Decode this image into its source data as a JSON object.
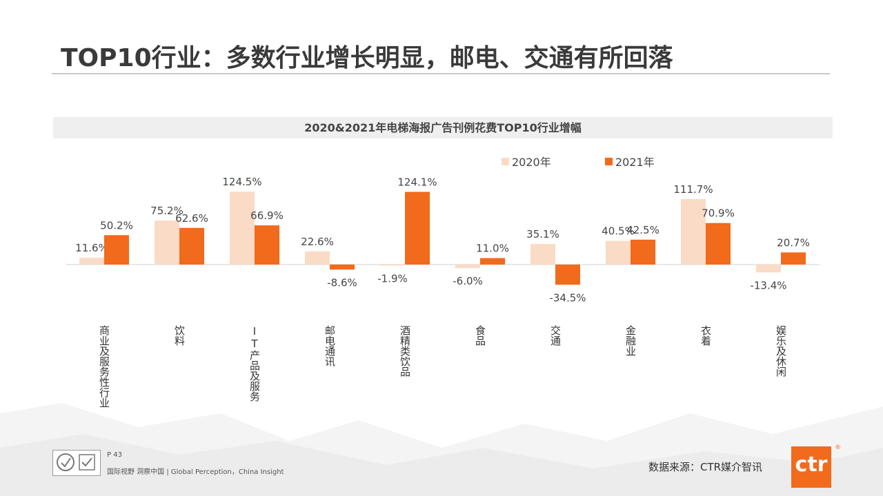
{
  "page": {
    "title": "TOP10行业：多数行业增长明显，邮电、交通有所回落",
    "page_number": "P 43",
    "slogan": "国际视野  洞察中国 | Global Perception，China Insight",
    "source": "数据来源：CTR媒介智讯",
    "logo_text": "ctr",
    "logo_mark": "®"
  },
  "colors": {
    "series_2020": "#fadbc6",
    "series_2021": "#f26a1b"
  },
  "chart_data": {
    "type": "bar",
    "title": "2020&2021年电梯海报广告刊例花费TOP10行业增幅",
    "categories": [
      "商业及服务性行业",
      "饮料",
      "IT产品及服务",
      "邮电通讯",
      "酒精类饮品",
      "食品",
      "交通",
      "金融业",
      "衣着",
      "娱乐及休闲"
    ],
    "series": [
      {
        "name": "2020年",
        "values": [
          11.6,
          75.2,
          124.5,
          22.6,
          -1.9,
          -6.0,
          35.1,
          40.5,
          111.7,
          -13.4
        ],
        "labels": [
          "11.6%",
          "75.2%",
          "124.5%",
          "22.6%",
          "-1.9%",
          "-6.0%",
          "35.1%",
          "40.5%",
          "111.7%",
          "-13.4%"
        ]
      },
      {
        "name": "2021年",
        "values": [
          50.2,
          62.6,
          66.9,
          -8.6,
          124.1,
          11.0,
          -34.5,
          42.5,
          70.9,
          20.7
        ],
        "labels": [
          "50.2%",
          "62.6%",
          "66.9%",
          "-8.6%",
          "124.1%",
          "11.0%",
          "-34.5%",
          "42.5%",
          "70.9%",
          "20.7%"
        ]
      }
    ],
    "legend_position": "top-right",
    "grid": false
  }
}
